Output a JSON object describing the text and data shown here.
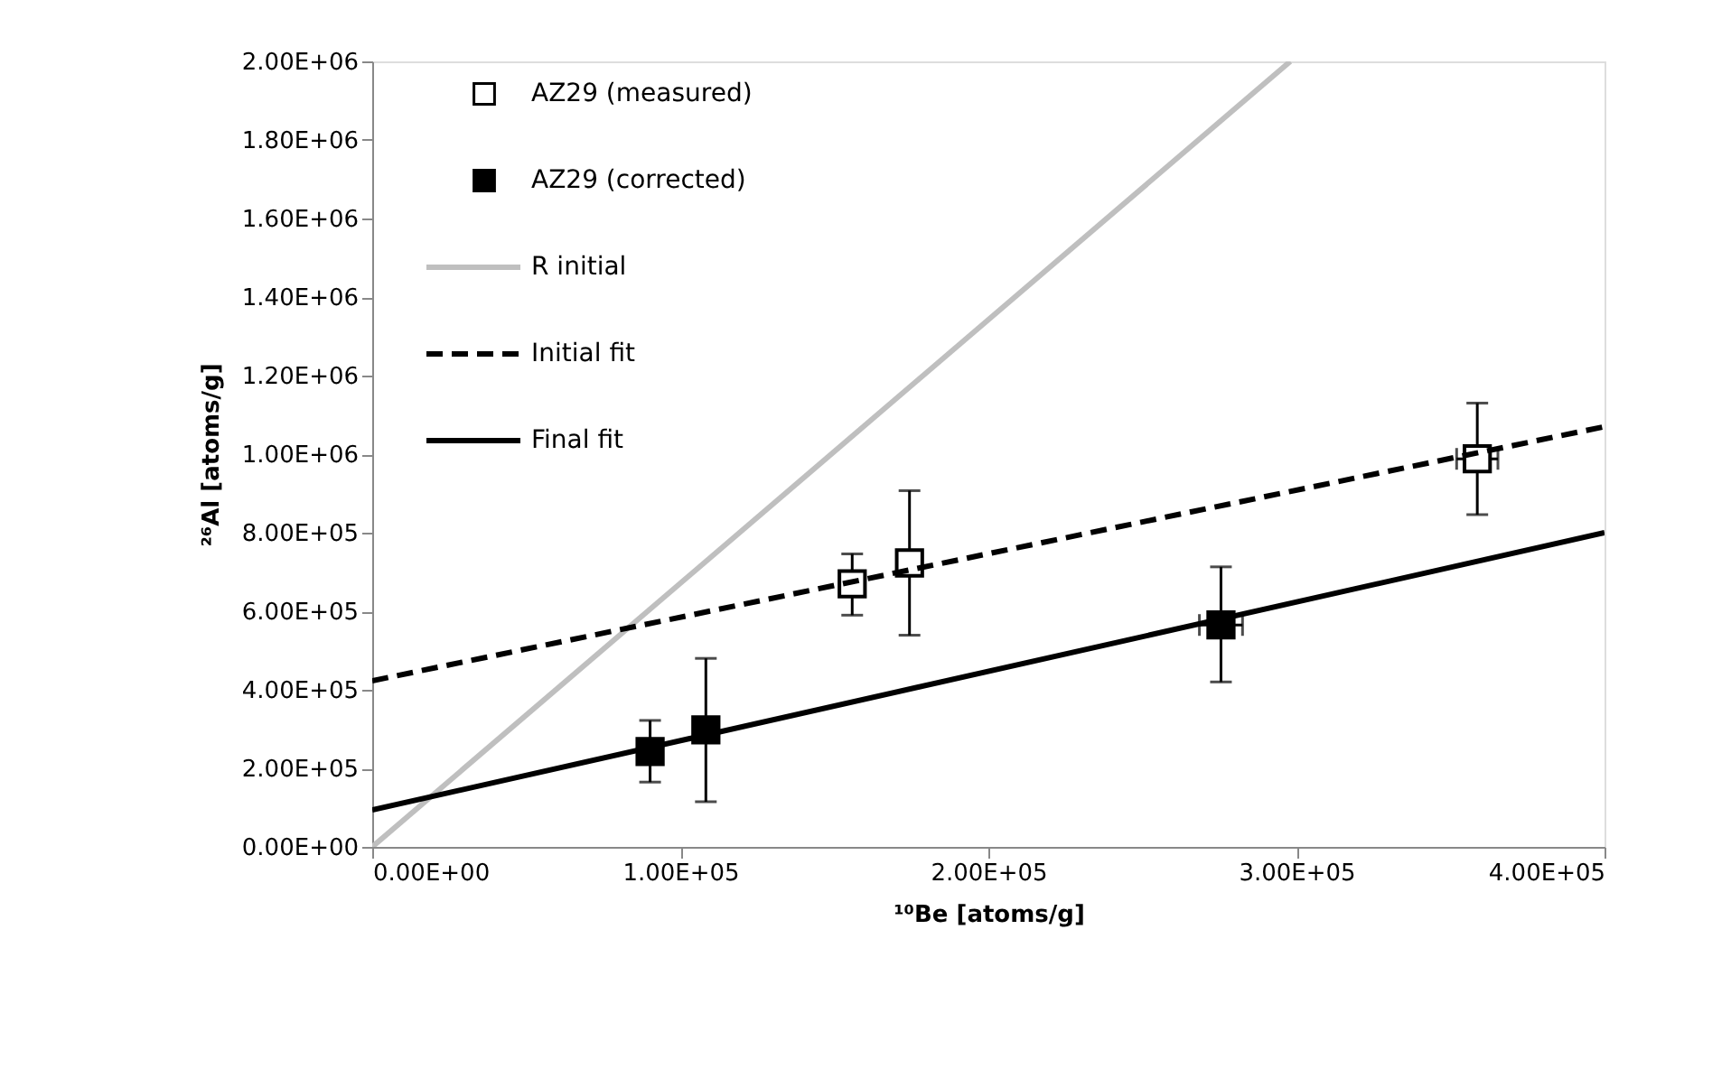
{
  "chart_data": {
    "type": "scatter",
    "xlabel": "¹⁰Be  [atoms/g]",
    "ylabel": "²⁶Al  [atoms/g]",
    "series": [
      {
        "name": "AZ29 (measured)",
        "marker": "square",
        "color": "#ffffff",
        "x": [
          155800,
          174400,
          358700
        ],
        "values": [
          670000,
          723000,
          988000
        ],
        "errors": [
          [
            590000,
            746000
          ],
          [
            539000,
            907000
          ],
          [
            846000,
            1130000
          ]
        ],
        "xerrors": [
          null,
          null,
          6700
        ]
      },
      {
        "name": "AZ29 (corrected)",
        "marker": "square",
        "color": "#000000",
        "x": [
          90200,
          108300,
          275500
        ],
        "values": [
          243000,
          298000,
          565000
        ],
        "errors": [
          [
            165000,
            322000
          ],
          [
            115000,
            480000
          ],
          [
            420000,
            713000
          ]
        ],
        "xerrors": [
          null,
          null,
          7000
        ]
      },
      {
        "name": "R initial",
        "type": "line",
        "marker": "none",
        "line_style": "solid",
        "color": "#bfbfbf",
        "x": [
          0,
          298000
        ],
        "values": [
          0,
          2000000
        ]
      },
      {
        "name": "Initial fit",
        "type": "line",
        "marker": "none",
        "line_style": "dashed",
        "color": "#000000",
        "x": [
          0,
          400000
        ],
        "values": [
          423000,
          1070000
        ]
      },
      {
        "name": "Final fit",
        "type": "line",
        "marker": "none",
        "line_style": "solid",
        "color": "#000000",
        "x": [
          0,
          400000
        ],
        "values": [
          94000,
          800000
        ]
      }
    ],
    "xlim": [
      0,
      400000
    ],
    "xticks": [
      {
        "value": 0,
        "label": "0.00E+00"
      },
      {
        "value": 100000,
        "label": "1.00E+05"
      },
      {
        "value": 200000,
        "label": "2.00E+05"
      },
      {
        "value": 300000,
        "label": "3.00E+05"
      },
      {
        "value": 400000,
        "label": "4.00E+05"
      }
    ],
    "ylim": [
      0,
      2000000
    ],
    "yticks": [
      {
        "value": 0,
        "label": "0.00E+00"
      },
      {
        "value": 200000,
        "label": "2.00E+05"
      },
      {
        "value": 400000,
        "label": "4.00E+05"
      },
      {
        "value": 600000,
        "label": "6.00E+05"
      },
      {
        "value": 800000,
        "label": "8.00E+05"
      },
      {
        "value": 1000000,
        "label": "1.00E+06"
      },
      {
        "value": 1200000,
        "label": "1.20E+06"
      },
      {
        "value": 1400000,
        "label": "1.40E+06"
      },
      {
        "value": 1600000,
        "label": "1.60E+06"
      },
      {
        "value": 1800000,
        "label": "1.80E+06"
      },
      {
        "value": 2000000,
        "label": "2.00E+06"
      }
    ],
    "grid": false,
    "legend": "top left"
  }
}
